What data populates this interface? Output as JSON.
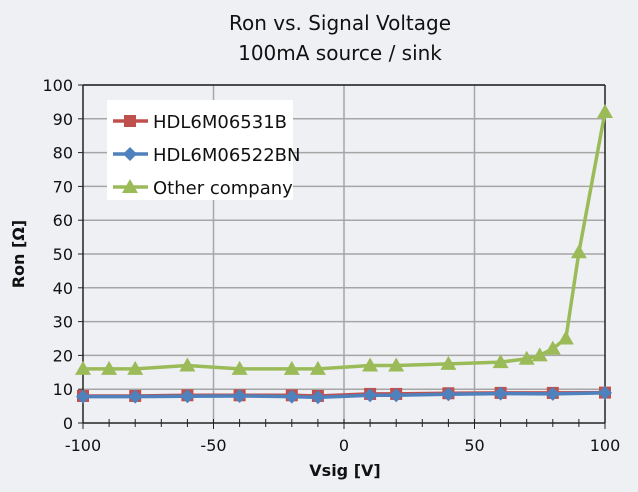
{
  "chart_data": {
    "type": "line",
    "title": [
      "Ron vs. Signal Voltage",
      "100mA source / sink"
    ],
    "xlabel": "Vsig [V]",
    "ylabel": "Ron [Ω]",
    "xlim": [
      -100,
      100
    ],
    "ylim": [
      0,
      100
    ],
    "xticks": [
      -100,
      -50,
      0,
      50,
      100
    ],
    "yticks": [
      0,
      10,
      20,
      30,
      40,
      50,
      60,
      70,
      80,
      90,
      100
    ],
    "grid": true,
    "legend_position": "top-left",
    "series": [
      {
        "name": "HDL6M06531B",
        "color": "#c0504d",
        "marker": "square",
        "x": [
          -100,
          -80,
          -60,
          -40,
          -20,
          -10,
          10,
          20,
          40,
          60,
          80,
          100
        ],
        "y": [
          8,
          8,
          8.2,
          8.2,
          8.2,
          8,
          8.6,
          8.6,
          8.8,
          8.9,
          8.9,
          9
        ]
      },
      {
        "name": "HDL6M06522BN",
        "color": "#4f81bd",
        "marker": "diamond",
        "x": [
          -100,
          -80,
          -60,
          -40,
          -20,
          -10,
          10,
          20,
          40,
          60,
          80,
          100
        ],
        "y": [
          7.8,
          7.8,
          7.9,
          8,
          7.8,
          7.6,
          8.2,
          8.2,
          8.5,
          8.7,
          8.6,
          8.9
        ]
      },
      {
        "name": "Other company",
        "color": "#9bbb59",
        "marker": "triangle",
        "x": [
          -100,
          -90,
          -80,
          -60,
          -40,
          -20,
          -10,
          10,
          20,
          40,
          60,
          70,
          75,
          80,
          85,
          90,
          100
        ],
        "y": [
          16,
          16,
          16,
          17,
          16,
          16,
          16,
          17,
          17,
          17.5,
          18,
          19,
          20,
          22,
          25,
          50.5,
          92
        ]
      }
    ]
  }
}
